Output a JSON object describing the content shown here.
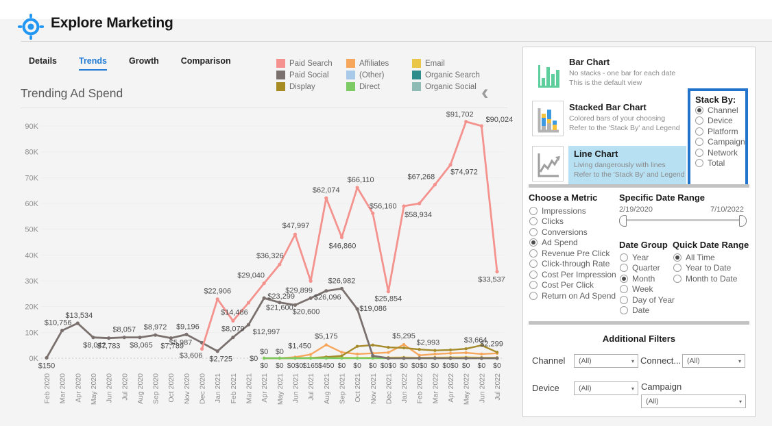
{
  "header": {
    "title": "Explore Marketing"
  },
  "tabs": {
    "items": [
      "Details",
      "Trends",
      "Growth",
      "Comparison"
    ],
    "active": "Trends"
  },
  "icons": {
    "collapse_legend": "‹",
    "dropdown_caret": "▾"
  },
  "legend": {
    "items": [
      {
        "label": "Paid Search",
        "color": "#f5928f"
      },
      {
        "label": "Paid Social",
        "color": "#7a706e"
      },
      {
        "label": "Display",
        "color": "#a58b22"
      },
      {
        "label": "Affiliates",
        "color": "#f7a75c"
      },
      {
        "label": "(Other)",
        "color": "#a9c9e8"
      },
      {
        "label": "Direct",
        "color": "#7ccb65"
      },
      {
        "label": "Email",
        "color": "#e9c647"
      },
      {
        "label": "Organic Search",
        "color": "#2f8c8c"
      },
      {
        "label": "Organic Social",
        "color": "#8ebcb4"
      }
    ]
  },
  "chart_data": {
    "type": "line",
    "title": "Trending Ad Spend",
    "ylabel": "",
    "xlabel": "",
    "ylim": [
      0,
      95000
    ],
    "grid": "subtle horizontal",
    "legend_position": "top",
    "y_tick_labels": [
      "0K",
      "10K",
      "20K",
      "30K",
      "40K",
      "50K",
      "60K",
      "70K",
      "80K",
      "90K"
    ],
    "x": [
      "Feb 2020",
      "Mar 2020",
      "Apr 2020",
      "May 2020",
      "Jun 2020",
      "Jul 2020",
      "Aug 2020",
      "Sep 2020",
      "Oct 2020",
      "Nov 2020",
      "Dec 2020",
      "Jan 2021",
      "Feb 2021",
      "Mar 2021",
      "Apr 2021",
      "May 2021",
      "Jun 2021",
      "Jul 2021",
      "Aug 2021",
      "Sep 2021",
      "Oct 2021",
      "Nov 2021",
      "Dec 2021",
      "Jan 2022",
      "Feb 2022",
      "Mar 2022",
      "Apr 2022",
      "May 2022",
      "Jun 2022",
      "Jul 2022"
    ],
    "series": [
      {
        "name": "Email",
        "color": "#e9c647",
        "start": 14,
        "values": [
          0,
          0,
          0,
          165,
          450,
          250,
          150,
          200,
          250,
          300,
          200,
          250,
          300,
          350,
          250,
          200
        ],
        "labels": [],
        "offsets": {}
      },
      {
        "name": "Affiliates",
        "color": "#f7a75c",
        "start": 14,
        "values": [
          0,
          0,
          400,
          1450,
          5175,
          2300,
          1600,
          1900,
          2200,
          5295,
          1100,
          1600,
          1900,
          2100,
          1600,
          1900
        ],
        "labels": [
          "$0",
          "$0",
          null,
          "$1,450",
          "$5,175",
          null,
          null,
          null,
          null,
          "$5,295",
          null,
          null,
          null,
          null,
          null,
          null
        ],
        "offsets": {
          "0": [
            0,
            -6
          ],
          "1": [
            0,
            -6
          ],
          "3": [
            -16,
            -9
          ],
          "4": [
            0,
            -9
          ],
          "9": [
            0,
            -9
          ]
        }
      },
      {
        "name": "Display",
        "color": "#a58b2a",
        "start": 14,
        "values": [
          0,
          0,
          0,
          0,
          450,
          900,
          4600,
          5100,
          4200,
          4000,
          3400,
          2993,
          3200,
          3664,
          5000,
          2299
        ],
        "labels": [
          null,
          null,
          null,
          null,
          null,
          null,
          null,
          null,
          null,
          null,
          null,
          "$2,993",
          null,
          "$3,664",
          null,
          "$2,299"
        ],
        "offsets": {
          "11": [
            -10,
            -8
          ],
          "13": [
            14,
            -9
          ],
          "15": [
            -8,
            -9
          ]
        }
      },
      {
        "name": "Direct",
        "color": "#7ccb65",
        "start": 14,
        "values": [
          0,
          0,
          0,
          0,
          0,
          0,
          0,
          0,
          0,
          0,
          0,
          0,
          0,
          0,
          0,
          0
        ],
        "labels": [
          "$0",
          null,
          null,
          null,
          null,
          null,
          null,
          null,
          null,
          null,
          null,
          null,
          null,
          null,
          null,
          null
        ],
        "offsets": {
          "0": [
            -15,
            4
          ]
        }
      },
      {
        "name": "Paid Social",
        "color": "#7a706e",
        "start": 0,
        "values": [
          150,
          10756,
          13534,
          8042,
          7783,
          8057,
          8065,
          8972,
          7789,
          9196,
          5987,
          2725,
          8079,
          12997,
          23299,
          21600,
          20600,
          23300,
          26096,
          26982,
          19086,
          900,
          0,
          0,
          0,
          0,
          0,
          0,
          0,
          0
        ],
        "labels": [
          "$150",
          "$10,756",
          "$13,534",
          "$8,042",
          "$7,783",
          "$8,057",
          "$8,065",
          "$8,972",
          "$7,789",
          "$9,196",
          "$5,987",
          "$2,725",
          "$8,079",
          "$12,997",
          "$23,299",
          "$21,600",
          "$20,600",
          null,
          "$26,096",
          "$26,982",
          "$19,086",
          null,
          null,
          null,
          null,
          null,
          null,
          null,
          null,
          null
        ],
        "offsets": {
          "0": [
            0,
            15
          ],
          "1": [
            -6,
            -8
          ],
          "2": [
            2,
            -8
          ],
          "3": [
            2,
            15
          ],
          "4": [
            0,
            15
          ],
          "5": [
            0,
            -8
          ],
          "6": [
            2,
            15
          ],
          "7": [
            0,
            -8
          ],
          "8": [
            2,
            15
          ],
          "9": [
            2,
            -8
          ],
          "10": [
            -31,
            3
          ],
          "11": [
            5,
            15
          ],
          "12": [
            0,
            -9
          ],
          "13": [
            26,
            14
          ],
          "14": [
            25,
            1
          ],
          "15": [
            0,
            11
          ],
          "16": [
            16,
            13
          ],
          "18": [
            2,
            13
          ],
          "19": [
            0,
            -8
          ],
          "20": [
            23,
            3
          ]
        }
      },
      {
        "name": "Paid Search",
        "color": "#f4928e",
        "start": 10,
        "values": [
          3606,
          22906,
          14486,
          21500,
          29040,
          36326,
          47997,
          29899,
          62074,
          46860,
          66110,
          56160,
          25854,
          58934,
          60000,
          67268,
          74972,
          91702,
          90024,
          33537
        ],
        "labels": [
          "$3,606",
          "$22,906",
          "$14,486",
          null,
          "$29,040",
          "$36,326",
          "$47,997",
          "$29,899",
          "$62,074",
          "$46,860",
          "$66,110",
          "$56,160",
          "$25,854",
          "$58,934",
          null,
          "$67,268",
          "$74,972",
          "$91,702",
          "$90,024",
          "$33,537"
        ],
        "offsets": {
          "0": [
            -16,
            13
          ],
          "1": [
            0,
            -8
          ],
          "2": [
            2,
            -9
          ],
          "4": [
            -19,
            -8
          ],
          "5": [
            -14,
            -9
          ],
          "6": [
            1,
            -9
          ],
          "7": [
            -17,
            17
          ],
          "8": [
            0,
            -8
          ],
          "9": [
            1,
            16
          ],
          "10": [
            5,
            -8
          ],
          "11": [
            15,
            -7
          ],
          "12": [
            0,
            14
          ],
          "13": [
            21,
            16
          ],
          "15": [
            -20,
            -8
          ],
          "16": [
            20,
            14
          ],
          "17": [
            -9,
            -7
          ],
          "18": [
            26,
            -6
          ],
          "19": [
            -8,
            15
          ]
        }
      }
    ],
    "axis_strip_labels": {
      "start": 14,
      "labels": [
        "$0",
        "$0",
        "$0$0",
        "$165",
        "$450",
        "$0",
        "$0",
        "$0",
        "$0$0",
        "$0",
        "$0$0",
        "$0",
        "$0$0",
        "$0",
        "$0",
        "$0"
      ]
    }
  },
  "panel": {
    "chart_types": [
      {
        "title": "Bar Chart",
        "line1": "No stacks - one bar for each date",
        "line2": "This is the default view",
        "selected": false
      },
      {
        "title": "Stacked Bar Chart",
        "line1": "Colored bars of your choosing",
        "line2": "Refer to the 'Stack By' and Legend",
        "selected": false
      },
      {
        "title": "Line Chart",
        "line1": "Living dangerously with lines",
        "line2": "Refer to the 'Stack By' and Legend",
        "selected": true
      }
    ],
    "stack_by": {
      "title": "Stack By:",
      "options": [
        "Channel",
        "Device",
        "Platform",
        "Campaign",
        "Network",
        "Total"
      ],
      "selected": "Channel"
    },
    "metric": {
      "title": "Choose a Metric",
      "options": [
        "Impressions",
        "Clicks",
        "Conversions",
        "Ad Spend",
        "Revenue Pre Click",
        "Click-through Rate",
        "Cost Per Impression",
        "Cost Per Click",
        "Return on Ad Spend"
      ],
      "selected": "Ad Spend"
    },
    "date_range": {
      "title": "Specific Date Range",
      "start": "2/19/2020",
      "end": "7/10/2022"
    },
    "date_group": {
      "title": "Date Group",
      "options": [
        "Year",
        "Quarter",
        "Month",
        "Week",
        "Day of Year",
        "Date"
      ],
      "selected": "Month"
    },
    "quick_date_range": {
      "title": "Quick Date Range",
      "options": [
        "All Time",
        "Year to Date",
        "Month to Date"
      ],
      "selected": "All Time"
    },
    "filters": {
      "title": "Additional Filters",
      "items": [
        {
          "label": "Channel",
          "value": "(All)"
        },
        {
          "label": "Connect...",
          "value": "(All)"
        },
        {
          "label": "Device",
          "value": "(All)"
        },
        {
          "label": "Campaign",
          "value": "(All)"
        }
      ]
    }
  }
}
